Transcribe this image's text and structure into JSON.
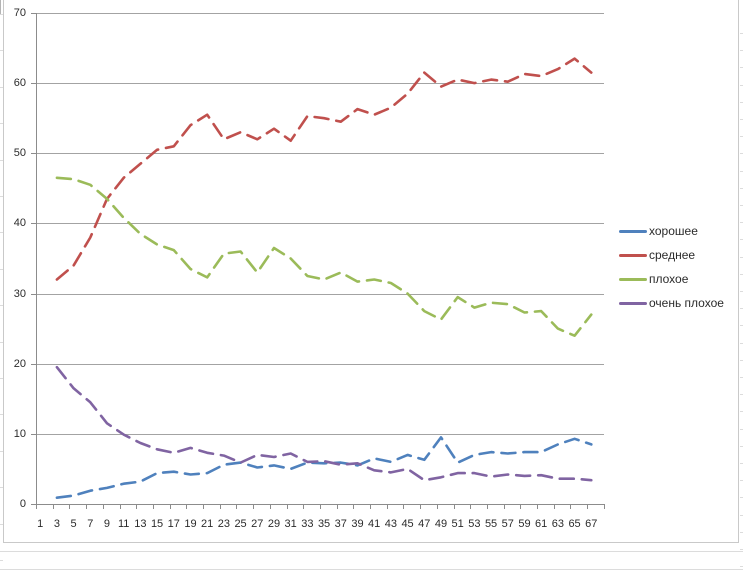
{
  "chart_data": {
    "type": "line",
    "title": "",
    "xlabel": "",
    "ylabel": "",
    "line_style": "dashed",
    "grid": "horizontal",
    "legend_position": "right",
    "ylim": [
      0,
      70
    ],
    "y_ticks": [
      0,
      10,
      20,
      30,
      40,
      50,
      60,
      70
    ],
    "x_axis_categories_range": [
      1,
      68
    ],
    "x_tick_labels": [
      "1",
      "3",
      "5",
      "7",
      "9",
      "11",
      "13",
      "15",
      "17",
      "19",
      "21",
      "23",
      "25",
      "27",
      "29",
      "31",
      "33",
      "35",
      "37",
      "39",
      "41",
      "43",
      "45",
      "47",
      "49",
      "51",
      "53",
      "55",
      "57",
      "59",
      "61",
      "63",
      "65",
      "67"
    ],
    "categories": [
      3,
      5,
      7,
      9,
      11,
      13,
      15,
      17,
      19,
      21,
      23,
      25,
      27,
      29,
      31,
      33,
      35,
      37,
      39,
      41,
      43,
      45,
      47,
      49,
      51,
      53,
      55,
      57,
      59,
      61,
      63,
      65,
      67
    ],
    "series": [
      {
        "name": "хорошее",
        "color": "#4F81BD",
        "values": [
          0.9,
          1.2,
          1.9,
          2.3,
          2.9,
          3.2,
          4.4,
          4.6,
          4.2,
          4.4,
          5.6,
          5.9,
          5.2,
          5.5,
          5.0,
          5.9,
          5.8,
          5.9,
          5.5,
          6.5,
          6.0,
          7.0,
          6.3,
          9.5,
          5.9,
          7.0,
          7.4,
          7.2,
          7.4,
          7.4,
          8.5,
          9.3,
          8.5
        ]
      },
      {
        "name": "среднее",
        "color": "#C0504D",
        "values": [
          32,
          34,
          38,
          43.5,
          46.5,
          48.5,
          50.5,
          51,
          54,
          55.5,
          52,
          53,
          52,
          53.5,
          51.8,
          55.3,
          55,
          54.5,
          56.3,
          55.5,
          56.5,
          58.5,
          61.5,
          59.5,
          60.5,
          60,
          60.5,
          60.2,
          61.3,
          61,
          62,
          63.5,
          61.5
        ]
      },
      {
        "name": "плохое",
        "color": "#9BBB59",
        "values": [
          46.5,
          46.3,
          45.5,
          43.5,
          40.8,
          38.5,
          37,
          36.2,
          33.5,
          32.3,
          35.7,
          36,
          33,
          36.5,
          35,
          32.5,
          32,
          33,
          31.7,
          32,
          31.5,
          30,
          27.5,
          26.3,
          29.5,
          28,
          28.7,
          28.5,
          27.3,
          27.5,
          25,
          24,
          27
        ]
      },
      {
        "name": "очень плохое",
        "color": "#8064A2",
        "values": [
          19.5,
          16.5,
          14.5,
          11.5,
          9.9,
          8.7,
          7.8,
          7.3,
          8.0,
          7.3,
          6.9,
          5.9,
          7.0,
          6.7,
          7.2,
          6.0,
          6.1,
          5.6,
          5.8,
          4.8,
          4.5,
          5.0,
          3.4,
          3.8,
          4.4,
          4.4,
          3.9,
          4.2,
          4.0,
          4.1,
          3.6,
          3.6,
          3.4
        ]
      }
    ]
  },
  "colors": {
    "gridline": "#a3a3a3",
    "axis": "#8c8c8c",
    "chart_border": "#c9c9c9",
    "axis_text": "#2b2b2b"
  }
}
